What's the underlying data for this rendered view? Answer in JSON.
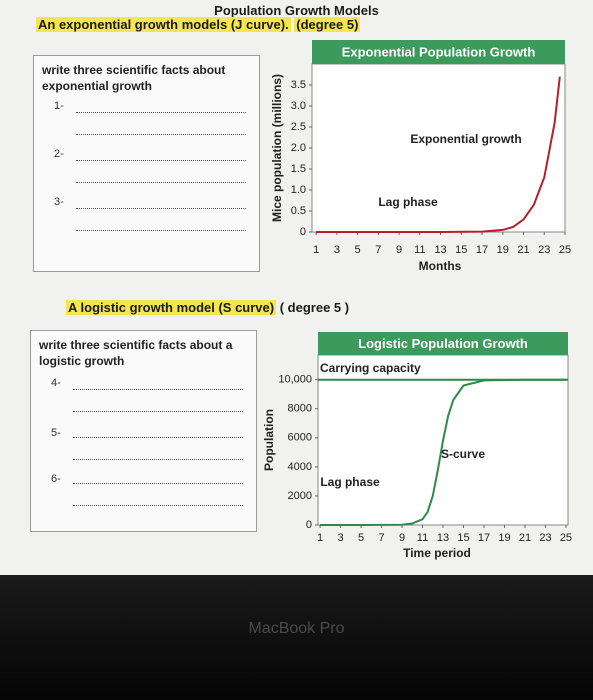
{
  "header": {
    "title": "Population Growth Models"
  },
  "sections": [
    {
      "heading": "An exponential growth models (J curve).",
      "degree": "(degree 5)",
      "prompt": "write three scientific facts about exponential growth",
      "items": [
        "1-",
        "2-",
        "3-"
      ]
    },
    {
      "heading": "A logistic growth model (S curve)",
      "degree": "( degree 5 )",
      "prompt": "write three scientific facts about a logistic growth",
      "items": [
        "4-",
        "5-",
        "6-"
      ]
    }
  ],
  "chart_data": [
    {
      "type": "line",
      "title": "Exponential Population Growth",
      "y_label": "Mice population (millions)",
      "x_label": "Months",
      "annotations": [
        "Exponential growth",
        "Lag phase"
      ],
      "x": [
        1,
        5,
        9,
        13,
        17,
        19,
        20,
        21,
        22,
        23,
        24,
        24.5
      ],
      "values": [
        0,
        0,
        0,
        0,
        0.01,
        0.05,
        0.12,
        0.3,
        0.65,
        1.3,
        2.6,
        3.7
      ],
      "color": "#b3202a",
      "title_color": "#3b9a5c",
      "xlim": [
        0.6,
        25
      ],
      "ylim": [
        0,
        4
      ],
      "xticks": [
        1,
        3,
        5,
        7,
        9,
        11,
        13,
        15,
        17,
        19,
        21,
        23,
        25
      ],
      "yticks": [
        0,
        0.5,
        {
          "value": 1,
          "label": "1.0"
        },
        1.5,
        {
          "value": 2,
          "label": "2.0"
        },
        2.5,
        {
          "value": 3,
          "label": "3.0"
        },
        3.5
      ]
    },
    {
      "type": "line",
      "title": "Logistic Population Growth",
      "y_label": "Population",
      "x_label": "Time period",
      "annotations": [
        "Carrying capacity",
        "S-curve",
        "Lag phase"
      ],
      "carrying_capacity": 10000,
      "x": [
        1,
        5,
        9,
        10,
        11,
        11.5,
        12,
        12.5,
        13,
        13.5,
        14,
        15,
        17,
        21,
        25
      ],
      "values": [
        0,
        0,
        20,
        100,
        400,
        900,
        2000,
        3800,
        5800,
        7500,
        8600,
        9600,
        9950,
        10000,
        10000
      ],
      "color": "#2f8a47",
      "title_color": "#3b9a5c",
      "xlim": [
        0.8,
        25.2
      ],
      "ylim": [
        0,
        11700
      ],
      "xticks": [
        1,
        3,
        5,
        7,
        9,
        11,
        13,
        15,
        17,
        19,
        21,
        23,
        25
      ],
      "yticks": [
        0,
        2000,
        4000,
        6000,
        8000,
        {
          "value": 10000,
          "label": "10,000"
        }
      ]
    }
  ],
  "device_label": "MacBook Pro"
}
